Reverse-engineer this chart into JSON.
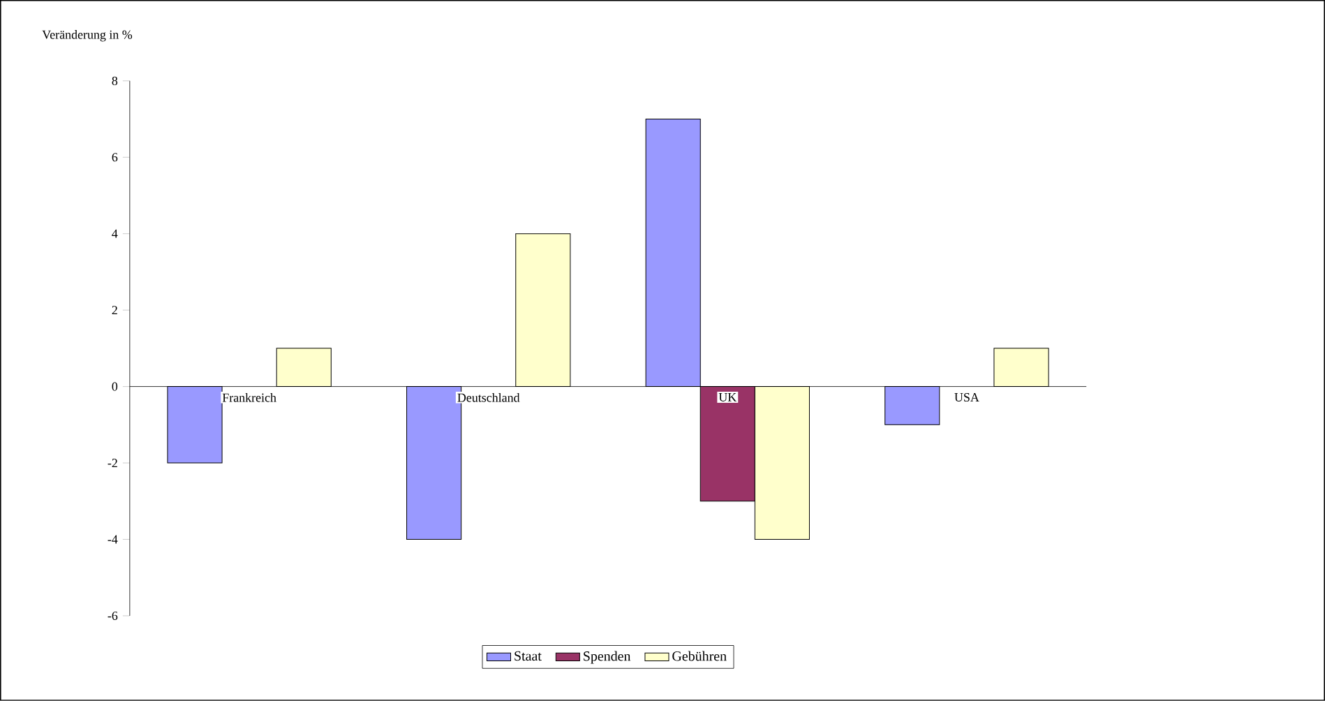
{
  "chart_data": {
    "type": "bar",
    "ylabel": "Veränderung in %",
    "categories": [
      "Frankreich",
      "Deutschland",
      "UK",
      "USA"
    ],
    "series": [
      {
        "name": "Staat",
        "color": "#9999ff",
        "values": [
          -2,
          -4,
          7,
          -1
        ]
      },
      {
        "name": "Spenden",
        "color": "#993366",
        "values": [
          null,
          null,
          -3,
          null
        ]
      },
      {
        "name": "Gebühren",
        "color": "#ffffcc",
        "values": [
          1,
          4,
          -4,
          1
        ]
      }
    ],
    "ylim": [
      -6,
      8
    ],
    "yticks": [
      -6,
      -4,
      -2,
      0,
      2,
      4,
      6,
      8
    ],
    "legend": "bottom"
  }
}
